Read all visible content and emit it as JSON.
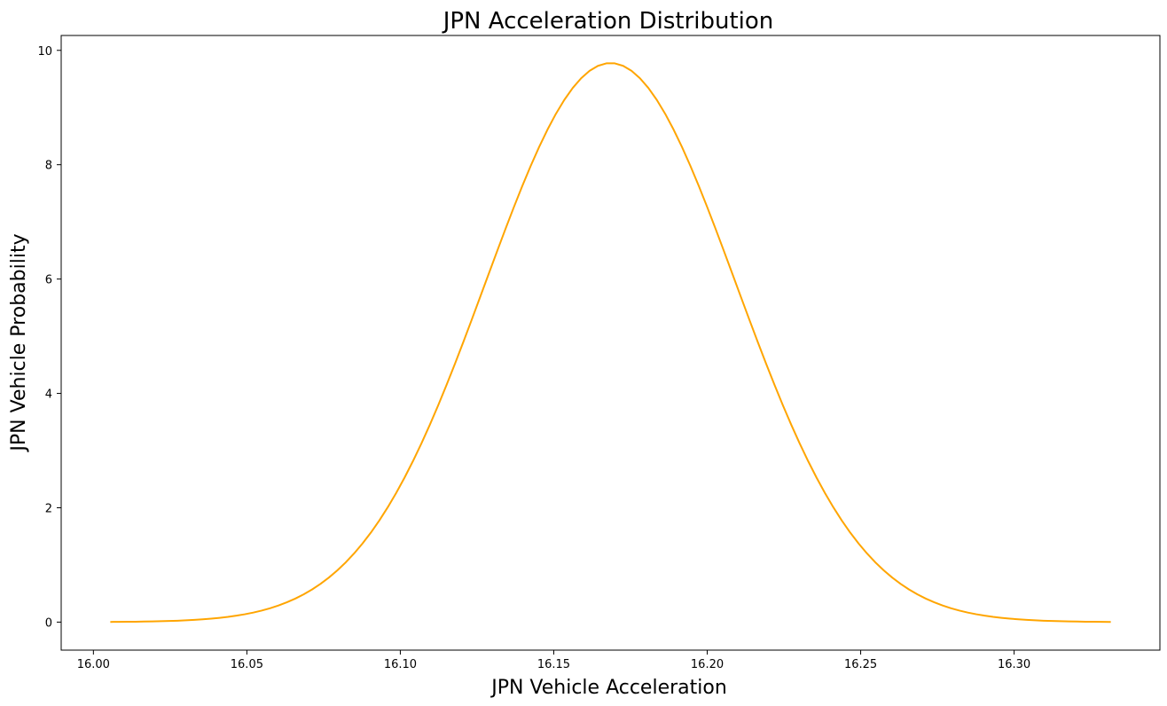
{
  "chart_data": {
    "type": "line",
    "title": "JPN Acceleration Distribution",
    "xlabel": "JPN Vehicle Acceleration",
    "ylabel": "JPN Vehicle Probability",
    "xlim": [
      15.9895,
      16.3475
    ],
    "ylim": [
      -0.49,
      10.26
    ],
    "x_ticks": [
      "16.00",
      "16.05",
      "16.10",
      "16.15",
      "16.20",
      "16.25",
      "16.30"
    ],
    "y_ticks": [
      "0",
      "2",
      "4",
      "6",
      "8",
      "10"
    ],
    "grid": false,
    "legend": null,
    "series": [
      {
        "color": "#ffa500",
        "distribution": {
          "mean": 16.1685,
          "sd": 0.0408,
          "x_min": 16.0055,
          "x_max": 16.3315,
          "points": 120
        }
      }
    ]
  }
}
